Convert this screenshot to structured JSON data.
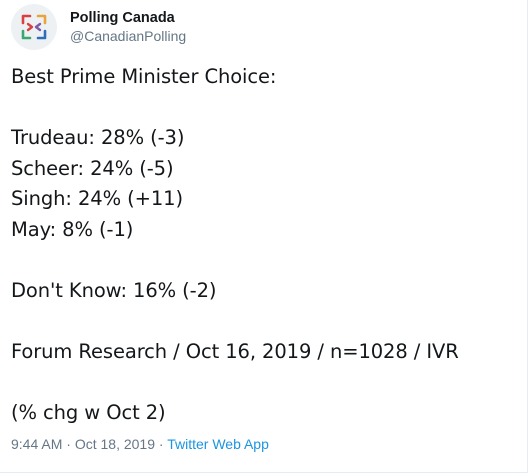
{
  "author": {
    "display_name": "Polling Canada",
    "handle": "@CanadianPolling",
    "avatar_icon": "polling-canada-logo-icon",
    "logo_colors": [
      "#d94141",
      "#2f6fb7",
      "#3aa76d",
      "#e8a33d",
      "#7b5aa6"
    ]
  },
  "tweet": {
    "title": "Best Prime Minister Choice:",
    "results": [
      "Trudeau: 28% (-3)",
      "Scheer: 24% (-5)",
      "Singh: 24% (+11)",
      "May: 8% (-1)"
    ],
    "undecided": "Don't Know: 16% (-2)",
    "source": "Forum Research / Oct 16, 2019 / n=1028 / IVR",
    "note": "(% chg w Oct 2)"
  },
  "meta": {
    "time": "9:44 AM",
    "separator": "·",
    "date": "Oct 18, 2019",
    "app": "Twitter Web App"
  }
}
